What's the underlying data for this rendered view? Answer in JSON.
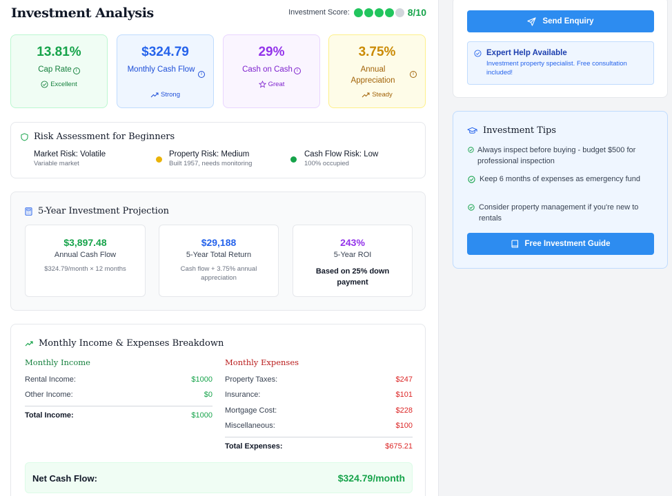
{
  "header": {
    "title": "Investment Analysis",
    "score_label": "Investment Score:",
    "score_value": "8/10",
    "score_dots": [
      true,
      true,
      true,
      true,
      false
    ]
  },
  "metrics": [
    {
      "value": "13.81%",
      "label": "Cap Rate",
      "badge": "Excellent",
      "badge_icon": "check-circle-icon",
      "color": "#16a34a"
    },
    {
      "value": "$324.79",
      "label": "Monthly Cash Flow",
      "badge": "Strong",
      "badge_icon": "trending-up-icon",
      "color": "#2563eb"
    },
    {
      "value": "29%",
      "label": "Cash on Cash",
      "badge": "Great",
      "badge_icon": "star-icon",
      "color": "#9333ea"
    },
    {
      "value": "3.75%",
      "label": "Annual Appreciation",
      "badge": "Steady",
      "badge_icon": "trending-up-icon",
      "color": "#ca8a04"
    }
  ],
  "risk": {
    "title": "Risk Assessment for Beginners",
    "items": [
      {
        "title": "Market Risk: Volatile",
        "subtitle": "Variable market",
        "dot_color": ""
      },
      {
        "title": "Property Risk: Medium",
        "subtitle": "Built 1957, needs monitoring",
        "dot_color": "#eab308"
      },
      {
        "title": "Cash Flow Risk: Low",
        "subtitle": "100% occupied",
        "dot_color": "#16a34a"
      }
    ]
  },
  "projection": {
    "title": "5-Year Investment Projection",
    "boxes": [
      {
        "value": "$3,897.48",
        "label": "Annual Cash Flow",
        "sub": "$324.79/month × 12 months",
        "color": "#16a34a"
      },
      {
        "value": "$29,188",
        "label": "5-Year Total Return",
        "sub": "Cash flow + 3.75% annual appreciation",
        "color": "#2563eb"
      },
      {
        "value": "243%",
        "label": "5-Year ROI",
        "sub": "Based on 25% down payment",
        "color": "#9333ea"
      }
    ]
  },
  "breakdown": {
    "title": "Monthly Income & Expenses Breakdown",
    "income": {
      "title": "Monthly Income",
      "rows": [
        {
          "label": "Rental Income:",
          "value": "$1000"
        },
        {
          "label": "Other Income:",
          "value": "$0"
        }
      ],
      "total_label": "Total Income:",
      "total_value": "$1000"
    },
    "expenses": {
      "title": "Monthly Expenses",
      "rows": [
        {
          "label": "Property Taxes:",
          "value": "$247"
        },
        {
          "label": "Insurance:",
          "value": "$101"
        },
        {
          "label": "Mortgage Cost:",
          "value": "$228"
        },
        {
          "label": "Miscellaneous:",
          "value": "$100"
        }
      ],
      "total_label": "Total Expenses:",
      "total_value": "$675.21"
    },
    "net_label": "Net Cash Flow:",
    "net_value": "$324.79/month"
  },
  "sidebar": {
    "enquiry_button": "Send Enquiry",
    "expert_title": "Expert Help Available",
    "expert_sub": "Investment property specialist. Free consultation included!",
    "tips_title": "Investment Tips",
    "tips": [
      "Always inspect before buying - budget $500 for professional inspection",
      "Keep 6 months of expenses as emergency fund",
      "Consider property management if you're new to rentals"
    ],
    "guide_button": "Free Investment Guide"
  },
  "colors": {
    "primary": "#2d8cf0",
    "green": "#16a34a",
    "red": "#dc2626",
    "purple": "#9333ea",
    "yellow": "#ca8a04"
  }
}
